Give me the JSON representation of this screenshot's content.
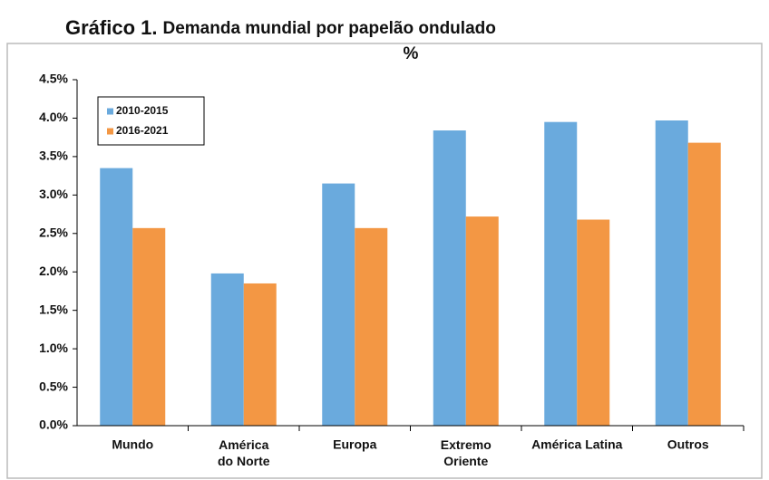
{
  "chart_data": {
    "type": "bar",
    "title_prefix": "Gráfico 1.",
    "title": "Demanda mundial por papelão ondulado",
    "subtitle": "%",
    "categories": [
      "Mundo",
      "América\ndo Norte",
      "Europa",
      "Extremo\nOriente",
      "América Latina",
      "Outros"
    ],
    "series": [
      {
        "name": "2010-2015",
        "color": "#6aaadd",
        "values": [
          3.35,
          1.98,
          3.15,
          3.84,
          3.95,
          3.97
        ]
      },
      {
        "name": "2016-2021",
        "color": "#f39744",
        "values": [
          2.57,
          1.85,
          2.57,
          2.72,
          2.68,
          3.68
        ]
      }
    ],
    "ylim": [
      0,
      4.5
    ],
    "yticks": [
      {
        "value": 0,
        "label": "0.0%"
      },
      {
        "value": 0.5,
        "label": "0.5%"
      },
      {
        "value": 1,
        "label": "1.0%"
      },
      {
        "value": 1.5,
        "label": "1.5%"
      },
      {
        "value": 2,
        "label": "2.0%"
      },
      {
        "value": 2.5,
        "label": "2.5%"
      },
      {
        "value": 3,
        "label": "3.0%"
      },
      {
        "value": 3.5,
        "label": "3.5%"
      },
      {
        "value": 4,
        "label": "4.0%"
      },
      {
        "value": 4.5,
        "label": "4.5%"
      }
    ],
    "grid": false,
    "legend": "upper-left"
  }
}
